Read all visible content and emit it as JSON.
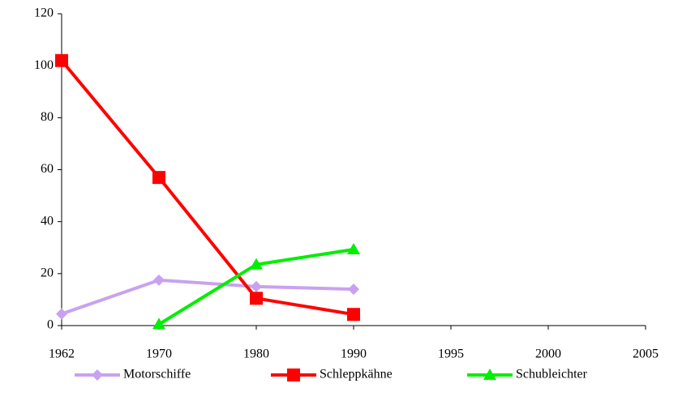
{
  "chart_data": {
    "type": "line",
    "categories": [
      "1962",
      "1970",
      "1980",
      "1990",
      "1995",
      "2000",
      "2005"
    ],
    "series": [
      {
        "name": "Motorschiffe",
        "color": "#c8a2f0",
        "marker": "diamond",
        "values": [
          4.5,
          17.5,
          15,
          14,
          null,
          null,
          null
        ]
      },
      {
        "name": "Schleppkähne",
        "color": "#ff0000",
        "marker": "square",
        "values": [
          102,
          57,
          10.5,
          4.3,
          null,
          null,
          null
        ]
      },
      {
        "name": "Schubleichter",
        "color": "#00ee00",
        "marker": "triangle",
        "values": [
          null,
          0.5,
          23.5,
          29.3,
          null,
          null,
          null
        ]
      }
    ],
    "ylim": [
      0,
      120
    ],
    "yticks": [
      0,
      20,
      40,
      60,
      80,
      100,
      120
    ],
    "grid": false,
    "legend": "bottom"
  }
}
